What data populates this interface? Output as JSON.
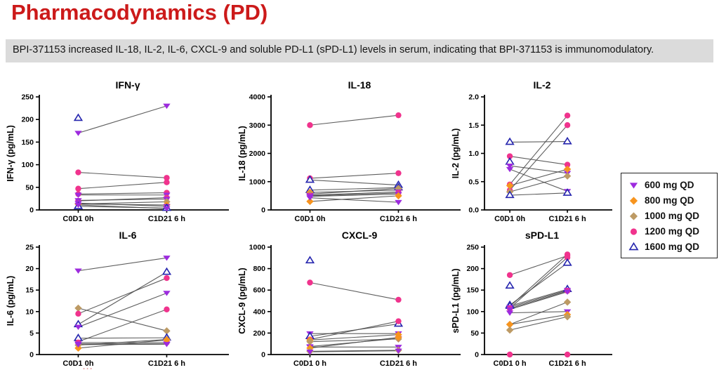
{
  "page": {
    "title": "Pharmacodynamics (PD)",
    "subtitle": "BPI-371153 increased IL-18, IL-2, IL-6, CXCL-9 and soluble PD-L1 (sPD-L1) levels in serum, indicating that BPI-371153 is immunomodulatory.",
    "cropped_artifact": "..."
  },
  "colors": {
    "title_red": "#cc1a1a",
    "subtitle_bg": "#dbdbdb",
    "pair_line": "#4d4d4d",
    "axis": "#000000"
  },
  "groups": [
    {
      "id": "600",
      "label": "600 mg QD",
      "marker": "triangle-down-filled",
      "color": "#9d2bde"
    },
    {
      "id": "800",
      "label": "800 mg QD",
      "marker": "diamond-filled",
      "color": "#f7941e"
    },
    {
      "id": "1000",
      "label": "1000 mg QD",
      "marker": "diamond-filled",
      "color": "#bd9a64"
    },
    {
      "id": "1200",
      "label": "1200 mg QD",
      "marker": "circle-filled",
      "color": "#f0338d"
    },
    {
      "id": "1600",
      "label": "1600 mg QD",
      "marker": "triangle-up-open",
      "color": "#2525ae"
    }
  ],
  "chart_data": [
    {
      "type": "line",
      "title": "IFN-γ",
      "ylabel": "IFN-γ (pg/mL)",
      "ylim": [
        0,
        250
      ],
      "yticks": [
        0,
        50,
        100,
        150,
        200,
        250
      ],
      "ytick_labels": [
        "0",
        "50",
        "100",
        "150",
        "200",
        "250"
      ],
      "categories": [
        "C0D1 0h",
        "C1D21 6 h"
      ],
      "grid": false,
      "legend_position": "outside-right",
      "pairs": [
        {
          "group": "1600",
          "values": [
            203,
            null
          ]
        },
        {
          "group": "600",
          "values": [
            170,
            230
          ]
        },
        {
          "group": "1200",
          "values": [
            83,
            71
          ]
        },
        {
          "group": "1200",
          "values": [
            47,
            61
          ]
        },
        {
          "group": "1200",
          "values": [
            35,
            38
          ]
        },
        {
          "group": "600",
          "values": [
            33,
            33
          ]
        },
        {
          "group": "1200",
          "values": [
            20,
            27
          ]
        },
        {
          "group": "600",
          "values": [
            21,
            24
          ]
        },
        {
          "group": "1000",
          "values": [
            13,
            18
          ]
        },
        {
          "group": "800",
          "values": [
            13,
            11
          ]
        },
        {
          "group": "600",
          "values": [
            15,
            8
          ]
        },
        {
          "group": "1600",
          "values": [
            8,
            4
          ]
        },
        {
          "group": "600",
          "values": [
            11,
            3
          ]
        }
      ]
    },
    {
      "type": "line",
      "title": "IL-18",
      "ylabel": "IL-18 (pg/mL)",
      "ylim": [
        0,
        4000
      ],
      "yticks": [
        0,
        1000,
        2000,
        3000,
        4000
      ],
      "ytick_labels": [
        "0",
        "1000",
        "2000",
        "3000",
        "4000"
      ],
      "categories": [
        "C0D1 0h",
        "C1D21 6 h"
      ],
      "grid": false,
      "pairs": [
        {
          "group": "1200",
          "values": [
            3000,
            3350
          ]
        },
        {
          "group": "1200",
          "values": [
            1120,
            1300
          ]
        },
        {
          "group": "1600",
          "values": [
            1060,
            880
          ]
        },
        {
          "group": "1600",
          "values": [
            700,
            790
          ]
        },
        {
          "group": "800",
          "values": [
            620,
            700
          ]
        },
        {
          "group": "1000",
          "values": [
            560,
            760
          ]
        },
        {
          "group": "600",
          "values": [
            520,
            640
          ]
        },
        {
          "group": "1200",
          "values": [
            500,
            600
          ]
        },
        {
          "group": "600",
          "values": [
            480,
            560
          ]
        },
        {
          "group": "800",
          "values": [
            300,
            500
          ]
        },
        {
          "group": "600",
          "values": [
            430,
            270
          ]
        }
      ]
    },
    {
      "type": "line",
      "title": "IL-2",
      "ylabel": "IL-2 (pg/mL)",
      "ylim": [
        0,
        2
      ],
      "yticks": [
        0,
        0.5,
        1,
        1.5,
        2
      ],
      "ytick_labels": [
        "0.0",
        "0.5",
        "1.0",
        "1.5",
        "2.0"
      ],
      "categories": [
        "C0D1 0h",
        "C1D21 6 h"
      ],
      "grid": false,
      "pairs": [
        {
          "group": "1600",
          "values": [
            1.2,
            1.21
          ]
        },
        {
          "group": "1200",
          "values": [
            0.95,
            0.8
          ]
        },
        {
          "group": "1600",
          "values": [
            0.85,
            null
          ]
        },
        {
          "group": "600",
          "values": [
            0.78,
            0.65
          ]
        },
        {
          "group": "600",
          "values": [
            0.72,
            0.33
          ]
        },
        {
          "group": "1200",
          "values": [
            0.45,
            1.67
          ]
        },
        {
          "group": "1200",
          "values": [
            0.35,
            1.5
          ]
        },
        {
          "group": "800",
          "values": [
            0.43,
            0.72
          ]
        },
        {
          "group": "1000",
          "values": [
            0.32,
            0.6
          ]
        },
        {
          "group": "1600",
          "values": [
            0.26,
            0.3
          ]
        }
      ]
    },
    {
      "type": "line",
      "title": "IL-6",
      "ylabel": "IL-6 (pg/mL)",
      "ylim": [
        0,
        25
      ],
      "yticks": [
        0,
        5,
        10,
        15,
        20,
        25
      ],
      "ytick_labels": [
        "0",
        "5",
        "10",
        "15",
        "20",
        "25"
      ],
      "categories": [
        "C0D1 0h",
        "C1D21 6 h"
      ],
      "grid": false,
      "pairs": [
        {
          "group": "600",
          "values": [
            19.5,
            22.5
          ]
        },
        {
          "group": "1000",
          "values": [
            10.8,
            5.5
          ]
        },
        {
          "group": "1200",
          "values": [
            9.5,
            17.8
          ]
        },
        {
          "group": "1600",
          "values": [
            7.0,
            19.2
          ]
        },
        {
          "group": "600",
          "values": [
            6.4,
            14.3
          ]
        },
        {
          "group": "1200",
          "values": [
            3.0,
            10.5
          ]
        },
        {
          "group": "1600",
          "values": [
            3.8,
            3.9
          ]
        },
        {
          "group": "1000",
          "values": [
            2.2,
            3.5
          ]
        },
        {
          "group": "1200",
          "values": [
            2.8,
            2.8
          ]
        },
        {
          "group": "600",
          "values": [
            2.5,
            2.5
          ]
        },
        {
          "group": "800",
          "values": [
            1.5,
            3.4
          ]
        },
        {
          "group": "600",
          "values": [
            2.3,
            2.4
          ]
        }
      ]
    },
    {
      "type": "line",
      "title": "CXCL-9",
      "ylabel": "CXCL-9 (pg/mL)",
      "ylim": [
        0,
        1000
      ],
      "yticks": [
        0,
        200,
        400,
        600,
        800,
        1000
      ],
      "ytick_labels": [
        "0",
        "200",
        "400",
        "600",
        "800",
        "1000"
      ],
      "categories": [
        "C0D1 0 h",
        "C1D21 6 h"
      ],
      "grid": false,
      "pairs": [
        {
          "group": "1600",
          "values": [
            875,
            null
          ]
        },
        {
          "group": "1200",
          "values": [
            670,
            510
          ]
        },
        {
          "group": "600",
          "values": [
            195,
            195
          ]
        },
        {
          "group": "1600",
          "values": [
            170,
            285
          ]
        },
        {
          "group": "1200",
          "values": [
            140,
            310
          ]
        },
        {
          "group": "800",
          "values": [
            135,
            185
          ]
        },
        {
          "group": "1000",
          "values": [
            120,
            145
          ]
        },
        {
          "group": "600",
          "values": [
            75,
            150
          ]
        },
        {
          "group": "600",
          "values": [
            70,
            70
          ]
        },
        {
          "group": "800",
          "values": [
            60,
            160
          ]
        },
        {
          "group": "1000",
          "values": [
            30,
            40
          ]
        },
        {
          "group": "600",
          "values": [
            25,
            35
          ]
        }
      ]
    },
    {
      "type": "line",
      "title": "sPD-L1",
      "ylabel": "sPD-L1 (pg/mL)",
      "ylim": [
        0,
        250
      ],
      "yticks": [
        0,
        50,
        100,
        150,
        200,
        250
      ],
      "ytick_labels": [
        "0",
        "50",
        "100",
        "150",
        "200",
        "250"
      ],
      "categories": [
        "C0D1 0 h",
        "C1D21 6 h"
      ],
      "grid": false,
      "pairs": [
        {
          "group": "1200",
          "values": [
            185,
            230
          ]
        },
        {
          "group": "1600",
          "values": [
            160,
            null
          ]
        },
        {
          "group": "1200",
          "values": [
            112,
            233
          ]
        },
        {
          "group": "1200",
          "values": [
            108,
            226
          ]
        },
        {
          "group": "1600",
          "values": [
            115,
            213
          ]
        },
        {
          "group": "1600",
          "values": [
            113,
            152
          ]
        },
        {
          "group": "600",
          "values": [
            110,
            150
          ]
        },
        {
          "group": "1200",
          "values": [
            107,
            148
          ]
        },
        {
          "group": "600",
          "values": [
            105,
            146
          ]
        },
        {
          "group": "600",
          "values": [
            97,
            100
          ]
        },
        {
          "group": "1000",
          "values": [
            70,
            122
          ]
        },
        {
          "group": "800",
          "values": [
            70,
            93
          ]
        },
        {
          "group": "1000",
          "values": [
            57,
            88
          ]
        },
        {
          "group": "1200",
          "values": [
            0,
            0
          ]
        }
      ]
    }
  ]
}
